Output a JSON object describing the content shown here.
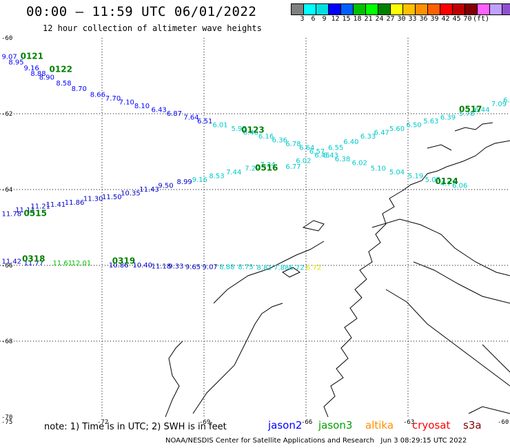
{
  "header": {
    "title": "00:00 – 11:59 UTC 06/01/2022",
    "subtitle": "12 hour collection of altimeter wave heights"
  },
  "color_scale": {
    "colors": [
      "#808080",
      "#00ffff",
      "#00e0e0",
      "#0000ff",
      "#0060ff",
      "#00c000",
      "#00ff00",
      "#008000",
      "#ffff00",
      "#ffc000",
      "#ff9000",
      "#ff6000",
      "#ff0000",
      "#c00000",
      "#800000",
      "#ff60ff",
      "#c0a0ff",
      "#9050d0",
      "#000000"
    ],
    "labels": [
      "3",
      "6",
      "9",
      "12",
      "15",
      "18",
      "21",
      "24",
      "27",
      "30",
      "33",
      "36",
      "39",
      "42",
      "45",
      "70",
      "(ft)"
    ]
  },
  "axes": {
    "lon_labels": [
      "-75",
      "-72",
      "-69",
      "-66",
      "-63",
      "-60"
    ],
    "lat_labels": [
      "-60",
      "-62",
      "-64",
      "-66",
      "-68",
      "-70"
    ]
  },
  "passes": [
    {
      "id": "0121",
      "lon": -74.4,
      "lat": -60.55
    },
    {
      "id": "0122",
      "lon": -73.55,
      "lat": -60.9
    },
    {
      "id": "0123",
      "lon": -67.9,
      "lat": -62.5
    },
    {
      "id": "0516",
      "lon": -67.5,
      "lat": -63.5
    },
    {
      "id": "0517",
      "lon": -61.5,
      "lat": -61.95
    },
    {
      "id": "0124",
      "lon": -62.2,
      "lat": -63.85
    },
    {
      "id": "0515",
      "lon": -74.3,
      "lat": -64.7
    },
    {
      "id": "0318",
      "lon": -74.35,
      "lat": -65.9
    },
    {
      "id": "0319",
      "lon": -71.7,
      "lat": -65.95
    }
  ],
  "tracks": [
    {
      "name": "desc-0121-0122",
      "color": "#0000ff",
      "points": [
        {
          "lon": -74.95,
          "lat": -60.55,
          "v": "9.07"
        },
        {
          "lon": -74.75,
          "lat": -60.7,
          "v": "8.95"
        },
        {
          "lon": -74.3,
          "lat": -60.85,
          "v": "9.16"
        },
        {
          "lon": -74.1,
          "lat": -61.0,
          "v": "8.88"
        },
        {
          "lon": -73.85,
          "lat": -61.1,
          "v": "8.90"
        },
        {
          "lon": -73.35,
          "lat": -61.25,
          "v": "8.58"
        },
        {
          "lon": -72.9,
          "lat": -61.4,
          "v": "8.70"
        },
        {
          "lon": -72.35,
          "lat": -61.55,
          "v": "8.66"
        },
        {
          "lon": -71.9,
          "lat": -61.65,
          "v": "7.70"
        },
        {
          "lon": -71.5,
          "lat": -61.75,
          "v": "7.10"
        },
        {
          "lon": -71.05,
          "lat": -61.85,
          "v": "8.10"
        },
        {
          "lon": -70.55,
          "lat": -61.95,
          "v": "6.43"
        },
        {
          "lon": -70.1,
          "lat": -62.05,
          "v": "6.87"
        },
        {
          "lon": -69.6,
          "lat": -62.15,
          "v": "7.64"
        },
        {
          "lon": -69.2,
          "lat": -62.25,
          "v": "6.51"
        }
      ]
    },
    {
      "name": "desc-cont",
      "color": "#00c8c8",
      "points": [
        {
          "lon": -68.75,
          "lat": -62.35,
          "v": "6.01"
        },
        {
          "lon": -68.2,
          "lat": -62.45,
          "v": "5.95"
        },
        {
          "lon": -67.85,
          "lat": -62.55,
          "v": "6.46"
        },
        {
          "lon": -67.4,
          "lat": -62.65,
          "v": "6.16"
        },
        {
          "lon": -67.0,
          "lat": -62.75,
          "v": "6.36"
        },
        {
          "lon": -66.6,
          "lat": -62.85,
          "v": "6.78"
        },
        {
          "lon": -66.2,
          "lat": -62.95,
          "v": "6.64"
        },
        {
          "lon": -65.9,
          "lat": -63.05,
          "v": "6.57"
        },
        {
          "lon": -65.5,
          "lat": -63.15,
          "v": "6.43"
        },
        {
          "lon": -65.15,
          "lat": -63.25,
          "v": "6.38"
        },
        {
          "lon": -64.65,
          "lat": -63.35,
          "v": "6.02"
        },
        {
          "lon": -64.1,
          "lat": -63.5,
          "v": "5.10"
        },
        {
          "lon": -63.55,
          "lat": -63.6,
          "v": "5.04"
        },
        {
          "lon": -63.0,
          "lat": -63.7,
          "v": "5.19"
        },
        {
          "lon": -62.5,
          "lat": -63.8,
          "v": "5.07"
        },
        {
          "lon": -62.05,
          "lat": -63.9,
          "v": "4.77"
        },
        {
          "lon": -61.7,
          "lat": -63.95,
          "v": "6.06"
        }
      ]
    },
    {
      "name": "asc-0516-0517",
      "color": "#00c8c8",
      "points": [
        {
          "lon": -66.6,
          "lat": -63.45,
          "v": "6.77"
        },
        {
          "lon": -66.3,
          "lat": -63.3,
          "v": "6.02"
        },
        {
          "lon": -65.75,
          "lat": -63.15,
          "v": "6.45"
        },
        {
          "lon": -65.35,
          "lat": -62.95,
          "v": "6.55"
        },
        {
          "lon": -64.9,
          "lat": -62.8,
          "v": "6.40"
        },
        {
          "lon": -64.4,
          "lat": -62.65,
          "v": "6.33"
        },
        {
          "lon": -64.0,
          "lat": -62.55,
          "v": "6.47"
        },
        {
          "lon": -63.55,
          "lat": -62.45,
          "v": "5.60"
        },
        {
          "lon": -63.05,
          "lat": -62.35,
          "v": "6.50"
        },
        {
          "lon": -62.55,
          "lat": -62.25,
          "v": "5.63"
        },
        {
          "lon": -62.05,
          "lat": -62.15,
          "v": "6.39"
        },
        {
          "lon": -61.5,
          "lat": -62.05,
          "v": "5.78"
        },
        {
          "lon": -61.05,
          "lat": -61.95,
          "v": "6.44"
        },
        {
          "lon": -60.55,
          "lat": -61.8,
          "v": "7.09"
        },
        {
          "lon": -60.2,
          "lat": -61.7,
          "v": "6.97"
        },
        {
          "lon": -59.85,
          "lat": -61.6,
          "v": "7.06"
        },
        {
          "lon": -59.4,
          "lat": -61.55,
          "v": "6.68"
        },
        {
          "lon": -58.85,
          "lat": -61.45,
          "v": "7.80"
        },
        {
          "lon": -58.45,
          "lat": -61.35,
          "v": "7.8"
        }
      ]
    },
    {
      "name": "asc-0515-0516",
      "color": "#0000c8",
      "points": [
        {
          "lon": -74.95,
          "lat": -64.7,
          "v": "11.78"
        },
        {
          "lon": -74.55,
          "lat": -64.6,
          "v": "11.11"
        },
        {
          "lon": -74.1,
          "lat": -64.5,
          "v": "11.21"
        },
        {
          "lon": -73.65,
          "lat": -64.45,
          "v": "11.41"
        },
        {
          "lon": -73.1,
          "lat": -64.4,
          "v": "11.86"
        },
        {
          "lon": -72.55,
          "lat": -64.3,
          "v": "11.30"
        },
        {
          "lon": -72.0,
          "lat": -64.25,
          "v": "11.50"
        },
        {
          "lon": -71.45,
          "lat": -64.15,
          "v": "10.35"
        },
        {
          "lon": -70.9,
          "lat": -64.05,
          "v": "11.43"
        },
        {
          "lon": -70.35,
          "lat": -63.95,
          "v": "9.50"
        },
        {
          "lon": -69.8,
          "lat": -63.85,
          "v": "8.99"
        }
      ]
    },
    {
      "name": "asc-cont",
      "color": "#00c8c8",
      "points": [
        {
          "lon": -69.35,
          "lat": -63.8,
          "v": "9.16"
        },
        {
          "lon": -68.85,
          "lat": -63.7,
          "v": "8.53"
        },
        {
          "lon": -68.35,
          "lat": -63.6,
          "v": "7.44"
        },
        {
          "lon": -67.8,
          "lat": -63.5,
          "v": "7.29"
        },
        {
          "lon": -67.35,
          "lat": -63.4,
          "v": "7.34"
        }
      ]
    },
    {
      "name": "pass-0318-0319",
      "color": "#0000c8",
      "points": [
        {
          "lon": -74.95,
          "lat": -65.95,
          "v": "11.42"
        },
        {
          "lon": -74.3,
          "lat": -66.0,
          "v": "11.77"
        },
        {
          "lon": -71.8,
          "lat": -66.05,
          "v": "10.86"
        },
        {
          "lon": -71.1,
          "lat": -66.05,
          "v": "10.40"
        },
        {
          "lon": -70.55,
          "lat": -66.08,
          "v": "11.18"
        },
        {
          "lon": -70.05,
          "lat": -66.08,
          "v": "9.33"
        },
        {
          "lon": -69.55,
          "lat": -66.1,
          "v": "9.65"
        },
        {
          "lon": -69.05,
          "lat": -66.1,
          "v": "9.07"
        }
      ]
    },
    {
      "name": "pass-0318-green",
      "color": "#00c000",
      "points": [
        {
          "lon": -73.45,
          "lat": -66.0,
          "v": "11.61"
        },
        {
          "lon": -72.9,
          "lat": -66.0,
          "v": "12.01"
        }
      ]
    },
    {
      "name": "pass-0319-cont",
      "color": "#00c8c8",
      "points": [
        {
          "lon": -68.55,
          "lat": -66.1,
          "v": "8.88"
        },
        {
          "lon": -68.0,
          "lat": -66.1,
          "v": "8.75"
        },
        {
          "lon": -67.45,
          "lat": -66.12,
          "v": "8.81"
        },
        {
          "lon": -66.95,
          "lat": -66.12,
          "v": "7.88"
        },
        {
          "lon": -66.5,
          "lat": -66.12,
          "v": "6.72"
        }
      ]
    },
    {
      "name": "pass-0319-yellow",
      "color": "#e0e000",
      "points": [
        {
          "lon": -66.0,
          "lat": -66.12,
          "v": "6.72"
        }
      ]
    }
  ],
  "legend": {
    "note": "note: 1) Time is in UTC; 2) SWH is in feet",
    "satellites": [
      {
        "name": "jason2",
        "color": "#0000ff"
      },
      {
        "name": "jason3",
        "color": "#00a000"
      },
      {
        "name": "altika",
        "color": "#ff9000"
      },
      {
        "name": "cryosat",
        "color": "#ff0000"
      },
      {
        "name": "s3a",
        "color": "#800000"
      }
    ]
  },
  "footer": {
    "credit": "NOAA/NESDIS Center for Satellite Applications and Research",
    "timestamp": "Jun  3 08:29:15 UTC 2022"
  }
}
